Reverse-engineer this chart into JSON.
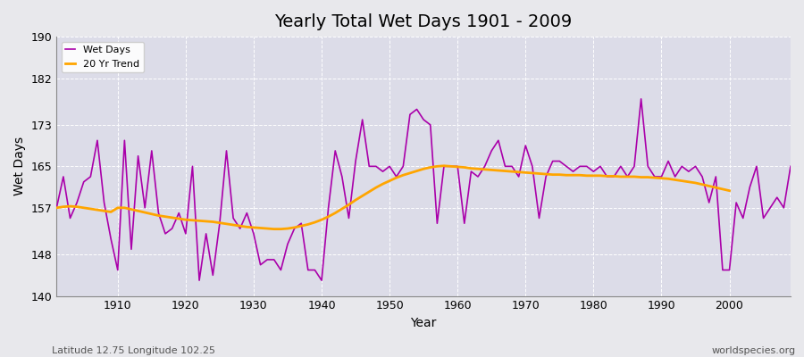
{
  "title": "Yearly Total Wet Days 1901 - 2009",
  "xlabel": "Year",
  "ylabel": "Wet Days",
  "subtitle_left": "Latitude 12.75 Longitude 102.25",
  "subtitle_right": "worldspecies.org",
  "wet_days_color": "#AA00AA",
  "trend_color": "#FFA500",
  "background_color": "#E8E8EC",
  "plot_bg_color": "#DCDCE8",
  "ylim": [
    140,
    190
  ],
  "yticks": [
    140,
    148,
    157,
    165,
    173,
    182,
    190
  ],
  "xlim": [
    1901,
    2009
  ],
  "years": [
    1901,
    1902,
    1903,
    1904,
    1905,
    1906,
    1907,
    1908,
    1909,
    1910,
    1911,
    1912,
    1913,
    1914,
    1915,
    1916,
    1917,
    1918,
    1919,
    1920,
    1921,
    1922,
    1923,
    1924,
    1925,
    1926,
    1927,
    1928,
    1929,
    1930,
    1931,
    1932,
    1933,
    1934,
    1935,
    1936,
    1937,
    1938,
    1939,
    1940,
    1941,
    1942,
    1943,
    1944,
    1945,
    1946,
    1947,
    1948,
    1949,
    1950,
    1951,
    1952,
    1953,
    1954,
    1955,
    1956,
    1957,
    1958,
    1959,
    1960,
    1961,
    1962,
    1963,
    1964,
    1965,
    1966,
    1967,
    1968,
    1969,
    1970,
    1971,
    1972,
    1973,
    1974,
    1975,
    1976,
    1977,
    1978,
    1979,
    1980,
    1981,
    1982,
    1983,
    1984,
    1985,
    1986,
    1987,
    1988,
    1989,
    1990,
    1991,
    1992,
    1993,
    1994,
    1995,
    1996,
    1997,
    1998,
    1999,
    2000,
    2001,
    2002,
    2003,
    2004,
    2005,
    2006,
    2007,
    2008,
    2009
  ],
  "wet_days": [
    157,
    163,
    155,
    158,
    162,
    163,
    170,
    158,
    151,
    145,
    170,
    149,
    167,
    157,
    168,
    156,
    152,
    153,
    156,
    152,
    165,
    143,
    152,
    144,
    154,
    168,
    155,
    153,
    156,
    152,
    146,
    147,
    147,
    145,
    150,
    153,
    154,
    145,
    145,
    143,
    157,
    168,
    163,
    155,
    166,
    174,
    165,
    165,
    164,
    165,
    163,
    165,
    175,
    176,
    174,
    173,
    154,
    165,
    165,
    165,
    154,
    164,
    163,
    165,
    168,
    170,
    165,
    165,
    163,
    169,
    165,
    155,
    163,
    166,
    166,
    165,
    164,
    165,
    165,
    164,
    165,
    163,
    163,
    165,
    163,
    165,
    178,
    165,
    163,
    163,
    166,
    163,
    165,
    164,
    165,
    163,
    158,
    163,
    145,
    145,
    158,
    155,
    161,
    165,
    155,
    157,
    159,
    157,
    165
  ],
  "trend_years": [
    1901,
    1902,
    1903,
    1904,
    1905,
    1906,
    1907,
    1908,
    1909,
    1910,
    1911,
    1912,
    1913,
    1914,
    1915,
    1916,
    1917,
    1918,
    1919,
    1920,
    1921,
    1922,
    1923,
    1924,
    1925,
    1926,
    1927,
    1928,
    1929,
    1930,
    1931,
    1932,
    1933,
    1934,
    1935,
    1936,
    1937,
    1938,
    1939,
    1940,
    1941,
    1942,
    1943,
    1944,
    1945,
    1946,
    1947,
    1948,
    1949,
    1950,
    1951,
    1952,
    1953,
    1954,
    1955,
    1956,
    1957,
    1958,
    1959,
    1960,
    1961,
    1962,
    1963,
    1964,
    1965,
    1966,
    1967,
    1968,
    1969,
    1970,
    1971,
    1972,
    1973,
    1974,
    1975,
    1976,
    1977,
    1978,
    1979,
    1980,
    1981,
    1982,
    1983,
    1984,
    1985,
    1986,
    1987,
    1988,
    1989,
    1990,
    1991,
    1992,
    1993,
    1994,
    1995,
    1996,
    1997,
    1998,
    1999,
    2000
  ],
  "trend_values": [
    157.0,
    157.2,
    157.3,
    157.2,
    157.0,
    156.8,
    156.6,
    156.4,
    156.2,
    157.0,
    157.0,
    156.7,
    156.4,
    156.1,
    155.8,
    155.5,
    155.3,
    155.1,
    154.9,
    154.7,
    154.6,
    154.5,
    154.4,
    154.3,
    154.1,
    153.9,
    153.7,
    153.5,
    153.3,
    153.2,
    153.1,
    153.0,
    152.9,
    152.9,
    153.0,
    153.2,
    153.5,
    153.8,
    154.2,
    154.7,
    155.3,
    156.0,
    156.8,
    157.6,
    158.5,
    159.3,
    160.1,
    160.9,
    161.6,
    162.2,
    162.8,
    163.3,
    163.7,
    164.1,
    164.5,
    164.8,
    165.0,
    165.1,
    165.0,
    164.9,
    164.8,
    164.6,
    164.5,
    164.4,
    164.3,
    164.2,
    164.1,
    164.0,
    163.9,
    163.8,
    163.7,
    163.6,
    163.5,
    163.4,
    163.4,
    163.3,
    163.3,
    163.3,
    163.2,
    163.2,
    163.2,
    163.1,
    163.1,
    163.0,
    163.0,
    163.0,
    162.9,
    162.9,
    162.8,
    162.7,
    162.6,
    162.4,
    162.2,
    162.0,
    161.8,
    161.5,
    161.2,
    160.9,
    160.6,
    160.3
  ]
}
